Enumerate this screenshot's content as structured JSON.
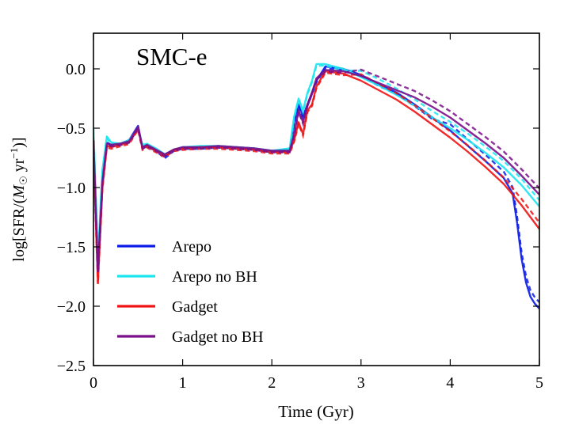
{
  "chart_data": {
    "type": "line",
    "title": "SMC-e",
    "xlabel": "Time (Gyr)",
    "ylabel": "log[SFR/(M☉ yr⁻¹)]",
    "ylabel_parts": {
      "a": "log[SFR/(",
      "m": "M",
      "sun": "☉",
      "b": " yr",
      "exp": "−1",
      "c": ")]"
    },
    "xlim": [
      0,
      5
    ],
    "ylim": [
      -2.5,
      0.3
    ],
    "xticks": [
      0,
      1,
      2,
      3,
      4,
      5
    ],
    "xtick_labels": [
      "0",
      "1",
      "2",
      "3",
      "4",
      "5"
    ],
    "yticks": [
      -2.5,
      -2.0,
      -1.5,
      -1.0,
      -0.5,
      0.0
    ],
    "ytick_labels": [
      "−2.5",
      "−2.0",
      "−1.5",
      "−1.0",
      "−0.5",
      "0.0"
    ],
    "legend_position": "lower-left",
    "series": [
      {
        "name": "Arepo",
        "color": "#0a1be6",
        "style": "solid",
        "x": [
          0.0,
          0.05,
          0.1,
          0.15,
          0.2,
          0.3,
          0.4,
          0.5,
          0.55,
          0.6,
          0.7,
          0.8,
          0.9,
          1.0,
          1.2,
          1.4,
          1.6,
          1.8,
          2.0,
          2.2,
          2.25,
          2.3,
          2.35,
          2.4,
          2.45,
          2.5,
          2.6,
          2.8,
          3.0,
          3.2,
          3.4,
          3.6,
          3.8,
          4.0,
          4.2,
          4.4,
          4.6,
          4.7,
          4.75,
          4.8,
          4.85,
          4.9,
          4.95,
          5.0
        ],
        "y": [
          -0.6,
          -1.7,
          -0.9,
          -0.62,
          -0.64,
          -0.63,
          -0.6,
          -0.48,
          -0.66,
          -0.64,
          -0.68,
          -0.74,
          -0.68,
          -0.66,
          -0.66,
          -0.65,
          -0.66,
          -0.67,
          -0.69,
          -0.68,
          -0.45,
          -0.3,
          -0.4,
          -0.3,
          -0.2,
          -0.1,
          0.02,
          0.0,
          -0.05,
          -0.13,
          -0.2,
          -0.3,
          -0.41,
          -0.52,
          -0.65,
          -0.78,
          -0.92,
          -1.05,
          -1.3,
          -1.6,
          -1.8,
          -1.92,
          -1.98,
          -2.02
        ]
      },
      {
        "name": "Arepo no BH",
        "color": "#1ae6f0",
        "style": "solid",
        "x": [
          0.0,
          0.05,
          0.1,
          0.15,
          0.2,
          0.3,
          0.4,
          0.5,
          0.55,
          0.6,
          0.7,
          0.8,
          0.9,
          1.0,
          1.2,
          1.4,
          1.6,
          1.8,
          2.0,
          2.2,
          2.25,
          2.3,
          2.35,
          2.4,
          2.45,
          2.5,
          2.6,
          2.8,
          3.0,
          3.2,
          3.4,
          3.6,
          3.8,
          4.0,
          4.2,
          4.4,
          4.6,
          4.8,
          5.0
        ],
        "y": [
          -0.5,
          -1.6,
          -0.85,
          -0.57,
          -0.62,
          -0.63,
          -0.6,
          -0.5,
          -0.64,
          -0.63,
          -0.67,
          -0.72,
          -0.68,
          -0.66,
          -0.65,
          -0.65,
          -0.66,
          -0.67,
          -0.69,
          -0.67,
          -0.4,
          -0.25,
          -0.35,
          -0.2,
          -0.1,
          0.04,
          0.04,
          0.0,
          -0.07,
          -0.14,
          -0.22,
          -0.31,
          -0.41,
          -0.5,
          -0.6,
          -0.71,
          -0.83,
          -0.98,
          -1.16
        ]
      },
      {
        "name": "Gadget",
        "color": "#f01414",
        "style": "solid",
        "x": [
          0.0,
          0.05,
          0.1,
          0.15,
          0.2,
          0.3,
          0.4,
          0.5,
          0.55,
          0.6,
          0.7,
          0.8,
          0.9,
          1.0,
          1.2,
          1.4,
          1.6,
          1.8,
          2.0,
          2.2,
          2.25,
          2.3,
          2.35,
          2.4,
          2.45,
          2.5,
          2.6,
          2.8,
          3.0,
          3.2,
          3.4,
          3.6,
          3.8,
          4.0,
          4.2,
          4.4,
          4.6,
          4.8,
          5.0
        ],
        "y": [
          -0.7,
          -1.8,
          -1.0,
          -0.65,
          -0.66,
          -0.64,
          -0.62,
          -0.5,
          -0.67,
          -0.65,
          -0.69,
          -0.73,
          -0.68,
          -0.67,
          -0.66,
          -0.66,
          -0.67,
          -0.68,
          -0.7,
          -0.7,
          -0.6,
          -0.45,
          -0.55,
          -0.35,
          -0.3,
          -0.15,
          -0.02,
          -0.04,
          -0.1,
          -0.18,
          -0.26,
          -0.36,
          -0.47,
          -0.58,
          -0.7,
          -0.83,
          -0.97,
          -1.15,
          -1.35
        ]
      },
      {
        "name": "Gadget no BH",
        "color": "#7a0f8a",
        "style": "solid",
        "x": [
          0.0,
          0.05,
          0.1,
          0.15,
          0.2,
          0.3,
          0.4,
          0.5,
          0.55,
          0.6,
          0.7,
          0.8,
          0.9,
          1.0,
          1.2,
          1.4,
          1.6,
          1.8,
          2.0,
          2.2,
          2.25,
          2.3,
          2.35,
          2.4,
          2.45,
          2.5,
          2.6,
          2.8,
          3.0,
          3.2,
          3.4,
          3.6,
          3.8,
          4.0,
          4.2,
          4.4,
          4.6,
          4.8,
          5.0
        ],
        "y": [
          -0.6,
          -1.7,
          -0.95,
          -0.63,
          -0.64,
          -0.63,
          -0.61,
          -0.49,
          -0.66,
          -0.64,
          -0.68,
          -0.72,
          -0.68,
          -0.66,
          -0.66,
          -0.65,
          -0.66,
          -0.67,
          -0.69,
          -0.69,
          -0.55,
          -0.35,
          -0.45,
          -0.3,
          -0.2,
          -0.08,
          -0.01,
          -0.02,
          -0.06,
          -0.12,
          -0.18,
          -0.24,
          -0.32,
          -0.41,
          -0.52,
          -0.63,
          -0.75,
          -0.9,
          -1.06
        ]
      }
    ]
  }
}
